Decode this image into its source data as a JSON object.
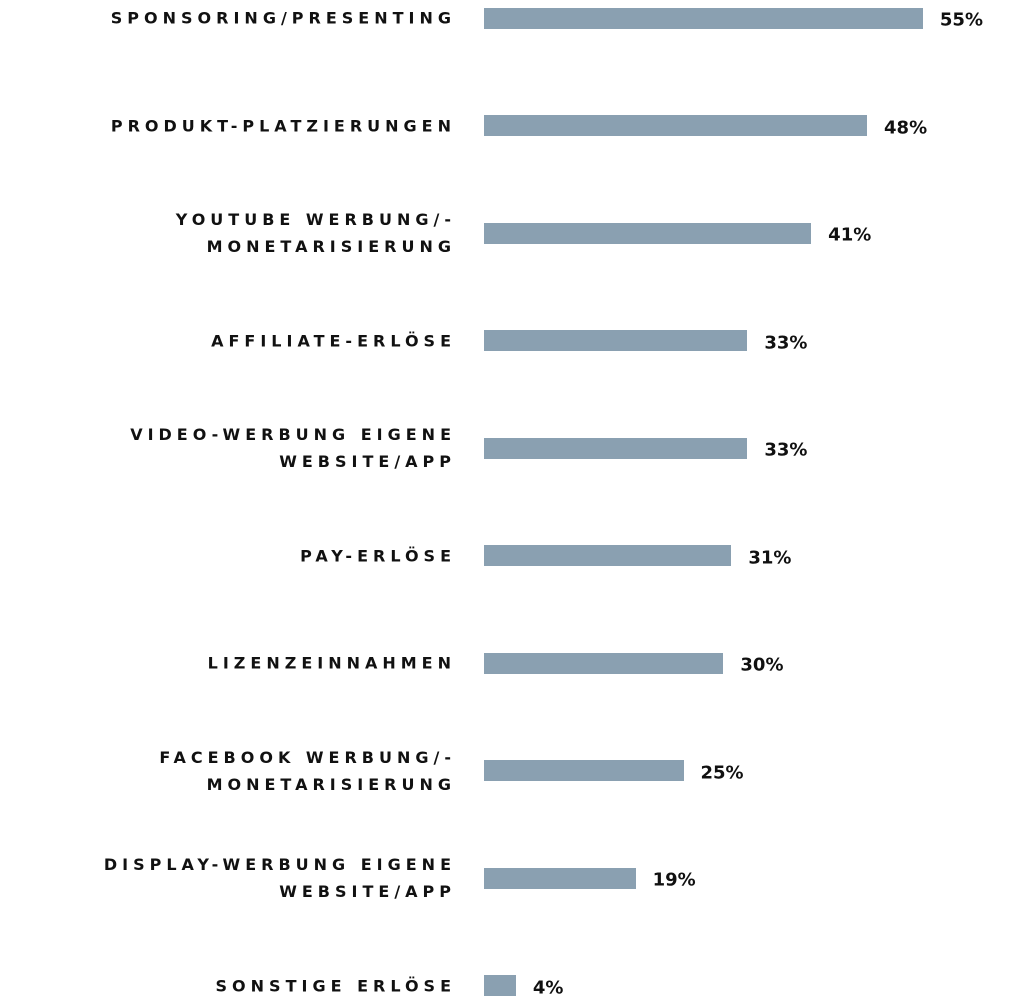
{
  "chart_data": {
    "type": "bar",
    "orientation": "horizontal",
    "color": "#8aa0b1",
    "categories": [
      "SPONSORING/PRESENTING",
      "PRODUKT-PLATZIERUNGEN",
      "YOUTUBE WERBUNG/-\nMONETARISIERUNG",
      "AFFILIATE-ERLÖSE",
      "VIDEO-WERBUNG EIGENE\nWEBSITE/APP",
      "PAY-ERLÖSE",
      "LIZENZEINNAHMEN",
      "FACEBOOK WERBUNG/-\nMONETARISIERUNG",
      "DISPLAY-WERBUNG EIGENE\nWEBSITE/APP",
      "SONSTIGE ERLÖSE"
    ],
    "values": [
      55,
      48,
      41,
      33,
      33,
      31,
      30,
      25,
      19,
      4
    ],
    "value_labels": [
      "55%",
      "48%",
      "41%",
      "33%",
      "33%",
      "31%",
      "30%",
      "25%",
      "19%",
      "4%"
    ]
  }
}
